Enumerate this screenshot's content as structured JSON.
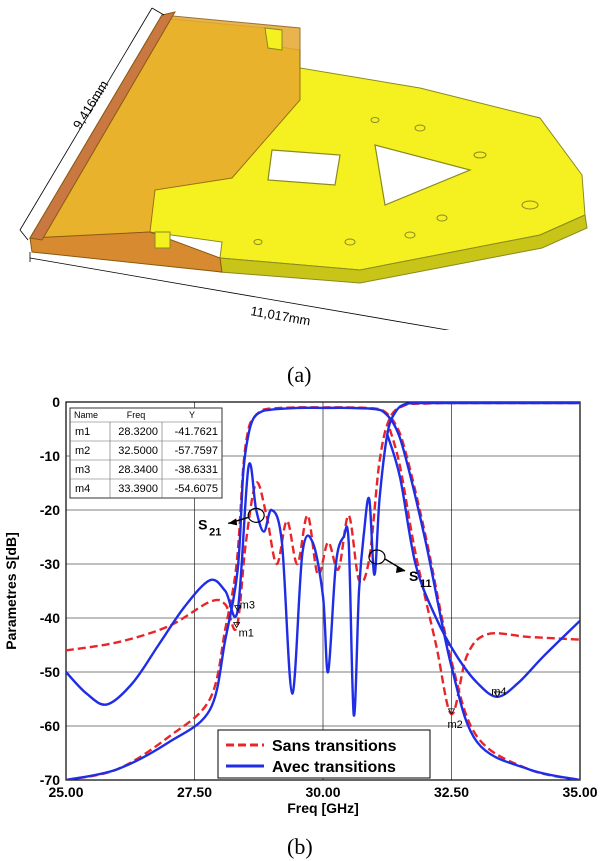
{
  "figure_a": {
    "dimension_height": "9,416mm",
    "dimension_width": "11,017mm",
    "caption": "(a)"
  },
  "figure_b_caption": "(b)",
  "chart_data": {
    "type": "line",
    "title": "",
    "xlabel": "Freq [GHz]",
    "ylabel": "Parametres S[dB]",
    "xlim": [
      25.0,
      35.0
    ],
    "ylim": [
      -70,
      0
    ],
    "x_ticks": [
      "25.00",
      "27.50",
      "30.00",
      "32.50",
      "35.00"
    ],
    "y_ticks": [
      "0",
      "-10",
      "-20",
      "-30",
      "-40",
      "-50",
      "-60",
      "-70"
    ],
    "grid": true,
    "legend_position": "bottom-center",
    "colors": {
      "sans": "#e8262a",
      "avec": "#1f2ee6"
    },
    "series": [
      {
        "name": "Sans transitions",
        "style": "dashed",
        "color": "#e8262a",
        "curves": [
          {
            "param": "S21",
            "x": [
              25.0,
              26.0,
              27.0,
              27.8,
              28.1,
              28.32,
              28.45,
              28.55,
              28.65,
              28.8,
              29.0,
              29.5,
              30.0,
              30.5,
              31.0,
              31.2,
              31.4,
              31.6,
              32.0,
              32.5,
              33.0,
              34.0,
              35.0
            ],
            "y": [
              -70,
              -68,
              -62,
              -55,
              -42,
              -30,
              -12,
              -5,
              -3,
              -1.6,
              -1.2,
              -1.0,
              -1.0,
              -1.0,
              -1.2,
              -1.8,
              -4,
              -9,
              -25,
              -48,
              -62,
              -68,
              -70
            ]
          },
          {
            "param": "S11",
            "x": [
              25.0,
              26.0,
              27.0,
              27.8,
              28.1,
              28.32,
              28.5,
              28.7,
              28.9,
              29.1,
              29.3,
              29.5,
              29.7,
              29.9,
              30.1,
              30.3,
              30.5,
              30.7,
              30.9,
              31.1,
              31.3,
              31.6,
              32.0,
              32.3,
              32.5,
              32.7,
              33.0,
              33.5,
              34.0,
              35.0
            ],
            "y": [
              -46,
              -44.5,
              -41.5,
              -37,
              -37.5,
              -41.8,
              -26,
              -15,
              -21,
              -30,
              -22,
              -30,
              -21,
              -32,
              -26,
              -31,
              -21,
              -33,
              -29,
              -11,
              -3,
              -0.6,
              -0.3,
              -0.2,
              -0.2,
              -0.2,
              -0.2,
              -0.2,
              -0.2,
              -0.2
            ]
          },
          {
            "param": "S11_tail",
            "x": [
              31.3,
              31.5,
              31.8,
              32.2,
              32.5,
              32.8,
              33.2,
              34.0,
              35.0
            ],
            "y": [
              -5,
              -12,
              -28,
              -45,
              -57.8,
              -47,
              -43,
              -43.5,
              -44
            ]
          }
        ]
      },
      {
        "name": "Avec transitions",
        "style": "solid",
        "color": "#1f2ee6",
        "curves": [
          {
            "param": "S21",
            "x": [
              25.0,
              26.0,
              27.0,
              27.8,
              28.1,
              28.34,
              28.45,
              28.55,
              28.65,
              28.8,
              29.0,
              29.5,
              30.0,
              30.5,
              31.0,
              31.2,
              31.4,
              31.6,
              32.0,
              32.5,
              33.0,
              34.0,
              35.0
            ],
            "y": [
              -70,
              -68,
              -63,
              -57,
              -44,
              -31,
              -13,
              -6,
              -3,
              -1.8,
              -1.4,
              -1.1,
              -1.1,
              -1.1,
              -1.3,
              -2,
              -4.5,
              -10,
              -26,
              -49,
              -63,
              -68,
              -70
            ]
          },
          {
            "param": "S11",
            "x": [
              25.0,
              25.4,
              25.8,
              26.3,
              26.8,
              27.3,
              27.8,
              28.1,
              28.34,
              28.55,
              28.7,
              28.85,
              29.0,
              29.2,
              29.4,
              29.6,
              29.8,
              30.0,
              30.1,
              30.25,
              30.4,
              30.5,
              30.6,
              30.7,
              30.8,
              30.9,
              31.0,
              31.1,
              31.25,
              31.4,
              31.6,
              32.0,
              32.5,
              33.0,
              33.39,
              33.7,
              34.2,
              35.0
            ],
            "y": [
              -50,
              -54,
              -56,
              -52,
              -45,
              -38,
              -33,
              -35,
              -38.6,
              -12,
              -20,
              -24,
              -20,
              -26,
              -54,
              -28,
              -26,
              -36,
              -50,
              -30,
              -25,
              -26,
              -58,
              -35,
              -24,
              -18,
              -32,
              -18,
              -6,
              -2,
              -0.4,
              -0.2,
              -0.2,
              -0.2,
              -0.2,
              -0.2,
              -0.2,
              -0.2
            ]
          },
          {
            "param": "S11_tail",
            "x": [
              31.25,
              31.5,
              31.8,
              32.2,
              32.6,
              33.0,
              33.39,
              33.8,
              34.3,
              35.0
            ],
            "y": [
              -6,
              -14,
              -30,
              -40,
              -47,
              -52,
              -54.6,
              -52,
              -47,
              -40.5
            ]
          }
        ]
      }
    ],
    "markers": [
      {
        "name": "m1",
        "freq": 28.32,
        "y": -41.7621
      },
      {
        "name": "m2",
        "freq": 32.5,
        "y": -57.7597
      },
      {
        "name": "m3",
        "freq": 28.34,
        "y": -38.6331
      },
      {
        "name": "m4",
        "freq": 33.39,
        "y": -54.6075
      }
    ],
    "marker_table": {
      "headers": [
        "Name",
        "Freq",
        "Y"
      ],
      "rows": [
        [
          "m1",
          "28.3200",
          "-41.7621"
        ],
        [
          "m2",
          "32.5000",
          "-57.7597"
        ],
        [
          "m3",
          "28.3400",
          "-38.6331"
        ],
        [
          "m4",
          "33.3900",
          "-54.6075"
        ]
      ]
    },
    "annotations": [
      {
        "label": "S",
        "sub": "21",
        "freq": 28.7,
        "y": -21
      },
      {
        "label": "S",
        "sub": "11",
        "freq": 31.05,
        "y": -28.7
      }
    ]
  }
}
